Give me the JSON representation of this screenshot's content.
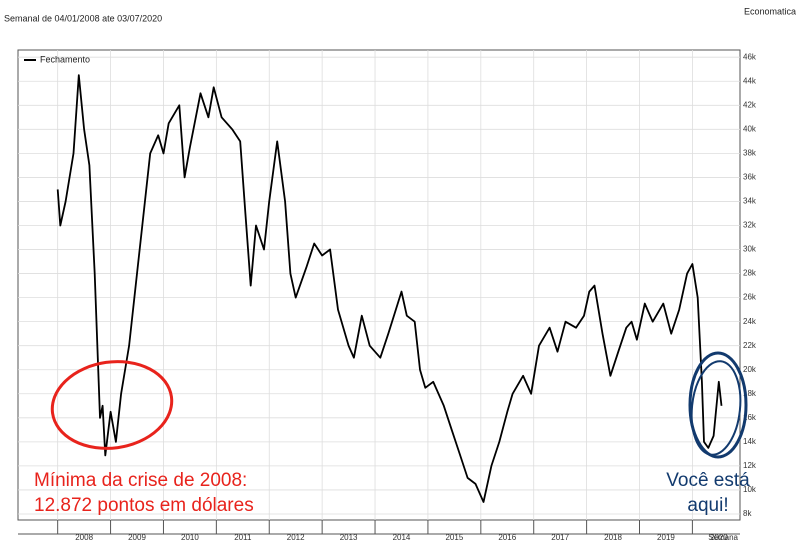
{
  "chart_data": {
    "type": "line",
    "subtitle": "Semanal de 04/01/2008 ate 03/07/2020",
    "source": "Economatica",
    "x_label": "Semana",
    "annotations": [
      "Mínima da crise de 2008:",
      "12.872 pontos em dólares",
      "Você está",
      "aqui!"
    ],
    "x": [
      2008.0,
      2008.05,
      2008.15,
      2008.3,
      2008.4,
      2008.5,
      2008.6,
      2008.7,
      2008.8,
      2008.85,
      2008.9,
      2009.0,
      2009.1,
      2009.2,
      2009.35,
      2009.5,
      2009.6,
      2009.75,
      2009.9,
      2010.0,
      2010.1,
      2010.3,
      2010.4,
      2010.5,
      2010.7,
      2010.85,
      2010.95,
      2011.1,
      2011.3,
      2011.45,
      2011.55,
      2011.65,
      2011.75,
      2011.9,
      2012.0,
      2012.15,
      2012.3,
      2012.4,
      2012.5,
      2012.7,
      2012.85,
      2013.0,
      2013.15,
      2013.3,
      2013.5,
      2013.6,
      2013.75,
      2013.9,
      2014.1,
      2014.25,
      2014.5,
      2014.6,
      2014.75,
      2014.85,
      2014.95,
      2015.1,
      2015.3,
      2015.45,
      2015.6,
      2015.75,
      2015.9,
      2016.05,
      2016.2,
      2016.35,
      2016.5,
      2016.6,
      2016.8,
      2016.95,
      2017.1,
      2017.3,
      2017.45,
      2017.6,
      2017.8,
      2017.95,
      2018.05,
      2018.15,
      2018.3,
      2018.45,
      2018.6,
      2018.75,
      2018.85,
      2018.95,
      2019.1,
      2019.25,
      2019.45,
      2019.6,
      2019.75,
      2019.9,
      2020.0,
      2020.1,
      2020.18,
      2020.22,
      2020.3,
      2020.4,
      2020.5,
      2020.55
    ],
    "series": [
      {
        "name": "Fechamento",
        "color": "#000000",
        "values": [
          35000,
          32000,
          34000,
          38000,
          44500,
          40000,
          37000,
          28000,
          16000,
          17000,
          12872,
          16500,
          14000,
          18000,
          22000,
          28000,
          32000,
          38000,
          39500,
          38000,
          40500,
          42000,
          36000,
          38500,
          43000,
          41000,
          43500,
          41000,
          40000,
          39000,
          33000,
          27000,
          32000,
          30000,
          34000,
          39000,
          34000,
          28000,
          26000,
          28500,
          30500,
          29500,
          30000,
          25000,
          22000,
          21000,
          24500,
          22000,
          21000,
          23000,
          26500,
          24500,
          24000,
          20000,
          18500,
          19000,
          17000,
          15000,
          13000,
          11000,
          10500,
          9000,
          12000,
          14000,
          16500,
          18000,
          19500,
          18000,
          22000,
          23500,
          21500,
          24000,
          23500,
          24500,
          26500,
          27000,
          23000,
          19500,
          21500,
          23500,
          24000,
          22500,
          25500,
          24000,
          25500,
          23000,
          25000,
          28000,
          28800,
          26000,
          19000,
          14000,
          13500,
          14500,
          19000,
          17000
        ]
      }
    ],
    "xlim": [
      2007.25,
      2020.9
    ],
    "xticks": [
      2008,
      2009,
      2010,
      2011,
      2012,
      2013,
      2014,
      2015,
      2016,
      2017,
      2018,
      2019,
      2020
    ],
    "ylim": [
      7500,
      46600
    ],
    "yticks": [
      {
        "value": 8000,
        "label": "8k"
      },
      {
        "value": 10000,
        "label": "10k"
      },
      {
        "value": 12000,
        "label": "12k"
      },
      {
        "value": 14000,
        "label": "14k"
      },
      {
        "value": 16000,
        "label": "16k"
      },
      {
        "value": 18000,
        "label": "18k"
      },
      {
        "value": 20000,
        "label": "20k"
      },
      {
        "value": 22000,
        "label": "22k"
      },
      {
        "value": 24000,
        "label": "24k"
      },
      {
        "value": 26000,
        "label": "26k"
      },
      {
        "value": 28000,
        "label": "28k"
      },
      {
        "value": 30000,
        "label": "30k"
      },
      {
        "value": 32000,
        "label": "32k"
      },
      {
        "value": 34000,
        "label": "34k"
      },
      {
        "value": 36000,
        "label": "36k"
      },
      {
        "value": 38000,
        "label": "38k"
      },
      {
        "value": 40000,
        "label": "40k"
      },
      {
        "value": 42000,
        "label": "42k"
      },
      {
        "value": 44000,
        "label": "44k"
      },
      {
        "value": 46000,
        "label": "46k"
      }
    ],
    "grid": true
  }
}
